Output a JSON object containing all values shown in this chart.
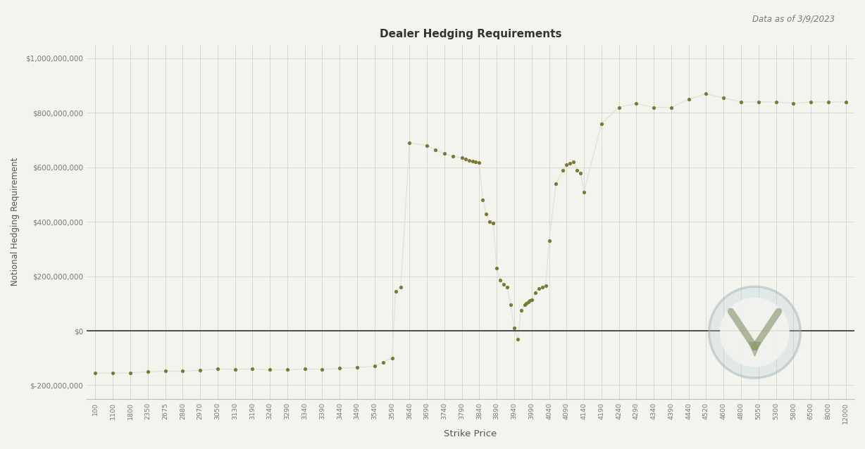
{
  "title": "Dealer Hedging Requirements",
  "subtitle": "Data as of 3/9/2023",
  "xlabel": "Strike Price",
  "ylabel": "Notional Hedging Requirement",
  "bg_color": "#f4f4ef",
  "line_color": "#ffffff",
  "dot_color": "#7a7a35",
  "zero_line_color": "#333333",
  "grid_color": "#d0d0c8",
  "ylim": [
    -250000000,
    1050000000
  ],
  "x_ticks": [
    100,
    1100,
    1800,
    2350,
    2675,
    2880,
    2970,
    3050,
    3130,
    3190,
    3240,
    3290,
    3340,
    3390,
    3440,
    3490,
    3540,
    3590,
    3640,
    3690,
    3740,
    3790,
    3840,
    3890,
    3940,
    3990,
    4040,
    4090,
    4140,
    4190,
    4240,
    4290,
    4340,
    4390,
    4440,
    4520,
    4600,
    4800,
    5050,
    5300,
    5800,
    6500,
    8000,
    12000
  ],
  "data_x": [
    100,
    1100,
    1800,
    2350,
    2675,
    2880,
    2970,
    3050,
    3130,
    3190,
    3240,
    3290,
    3340,
    3390,
    3440,
    3490,
    3540,
    3565,
    3590,
    3600,
    3615,
    3640,
    3690,
    3715,
    3740,
    3765,
    3790,
    3800,
    3810,
    3820,
    3830,
    3840,
    3850,
    3860,
    3870,
    3880,
    3890,
    3900,
    3910,
    3920,
    3930,
    3940,
    3950,
    3960,
    3970,
    3975,
    3980,
    3985,
    3990,
    4000,
    4010,
    4020,
    4030,
    4040,
    4060,
    4080,
    4090,
    4100,
    4110,
    4120,
    4130,
    4140,
    4190,
    4240,
    4290,
    4340,
    4390,
    4440,
    4520,
    4600,
    4800,
    5050,
    5300,
    5800,
    6500,
    8000,
    12000
  ],
  "data_y": [
    -155000000,
    -155000000,
    -155000000,
    -150000000,
    -148000000,
    -148000000,
    -145000000,
    -140000000,
    -142000000,
    -140000000,
    -143000000,
    -143000000,
    -140000000,
    -142000000,
    -138000000,
    -135000000,
    -130000000,
    -115000000,
    -100000000,
    145000000,
    160000000,
    690000000,
    680000000,
    665000000,
    650000000,
    640000000,
    635000000,
    630000000,
    625000000,
    622000000,
    620000000,
    618000000,
    480000000,
    430000000,
    400000000,
    395000000,
    230000000,
    185000000,
    170000000,
    160000000,
    95000000,
    10000000,
    -30000000,
    75000000,
    95000000,
    100000000,
    107000000,
    112000000,
    115000000,
    140000000,
    155000000,
    160000000,
    165000000,
    330000000,
    540000000,
    590000000,
    610000000,
    615000000,
    620000000,
    590000000,
    580000000,
    510000000,
    760000000,
    820000000,
    835000000,
    820000000,
    820000000,
    850000000,
    870000000,
    855000000,
    840000000,
    840000000,
    840000000,
    835000000,
    840000000,
    840000000,
    840000000
  ],
  "yticks": [
    -200000000,
    0,
    200000000,
    400000000,
    600000000,
    800000000,
    1000000000
  ]
}
